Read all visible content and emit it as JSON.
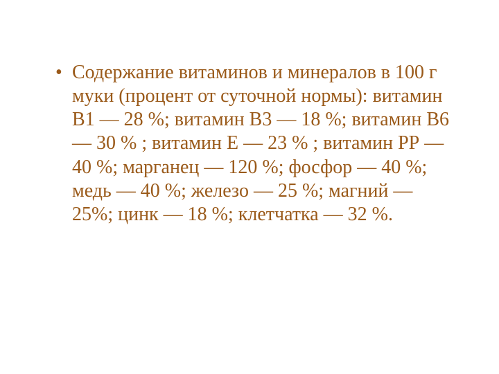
{
  "slide": {
    "background_color": "#ffffff",
    "text_color": "#9a5a1a",
    "font_family": "Times New Roman",
    "font_size_pt": 21,
    "bullet_text": "Содержание витаминов и минералов в 100 г муки (процент от суточной нормы): витамин В1 — 28 %; витамин В3 — 18 %; витамин В6 — 30 % ; витамин Е — 23 % ; витамин РР — 40 %; марганец — 120 %; фосфор — 40 %; медь — 40 %; железо — 25 %; магний — 25%; цинк — 18 %; клетчатка — 32 %."
  }
}
